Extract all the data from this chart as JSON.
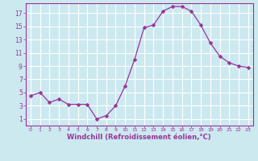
{
  "x": [
    0,
    1,
    2,
    3,
    4,
    5,
    6,
    7,
    8,
    9,
    10,
    11,
    12,
    13,
    14,
    15,
    16,
    17,
    18,
    19,
    20,
    21,
    22,
    23
  ],
  "y": [
    4.5,
    5.0,
    3.5,
    4.0,
    3.2,
    3.2,
    3.2,
    1.0,
    1.5,
    3.0,
    6.0,
    10.0,
    14.8,
    15.2,
    17.3,
    18.0,
    18.0,
    17.3,
    15.2,
    12.5,
    10.5,
    9.5,
    9.0,
    8.8
  ],
  "line_color": "#993399",
  "marker": "D",
  "marker_size": 2.5,
  "bg_color": "#cce9f0",
  "grid_color": "#ffffff",
  "xlabel": "Windchill (Refroidissement éolien,°C)",
  "ylabel": "",
  "xlim": [
    -0.5,
    23.5
  ],
  "ylim": [
    0,
    18.5
  ],
  "yticks": [
    1,
    3,
    5,
    7,
    9,
    11,
    13,
    15,
    17
  ],
  "xtick_labels": [
    "0",
    "1",
    "2",
    "3",
    "4",
    "5",
    "6",
    "7",
    "8",
    "9",
    "10",
    "11",
    "12",
    "13",
    "14",
    "15",
    "16",
    "17",
    "18",
    "19",
    "20",
    "21",
    "22",
    "23"
  ],
  "xlabel_color": "#993399",
  "tick_color": "#993399",
  "spine_color": "#993399"
}
